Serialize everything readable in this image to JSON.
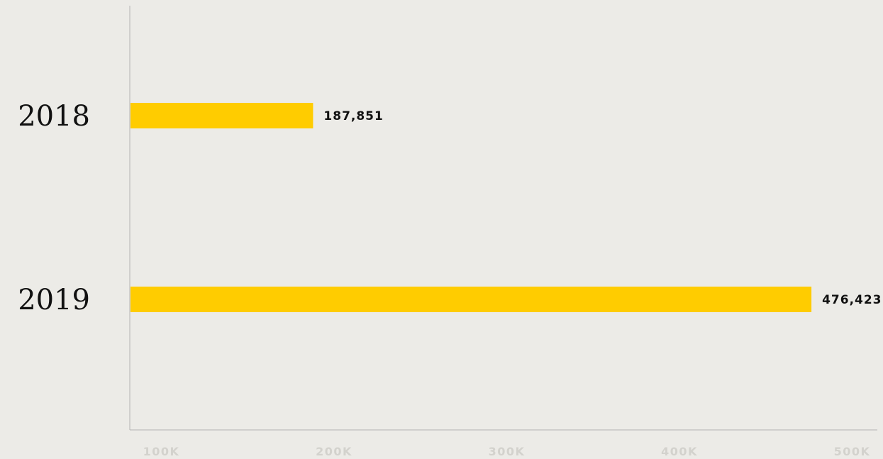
{
  "colors": {
    "background": "#ecebe7",
    "bar": "#ffcc00",
    "axis": "#b3b3b3",
    "category_text": "#111111",
    "value_text": "#111111",
    "tick_text": "#d3d2cd"
  },
  "chart_data": {
    "type": "bar",
    "orientation": "horizontal",
    "categories": [
      "2018",
      "2019"
    ],
    "values": [
      187851,
      476423
    ],
    "value_labels": [
      "187,851",
      "476,423"
    ],
    "xlim": [
      0,
      550000
    ],
    "xticks": [
      100000,
      200000,
      300000,
      400000,
      500000
    ],
    "xtick_labels": [
      "100K",
      "200K",
      "300K",
      "400K",
      "500K"
    ],
    "grid": false,
    "title": "",
    "xlabel": "",
    "ylabel": ""
  }
}
